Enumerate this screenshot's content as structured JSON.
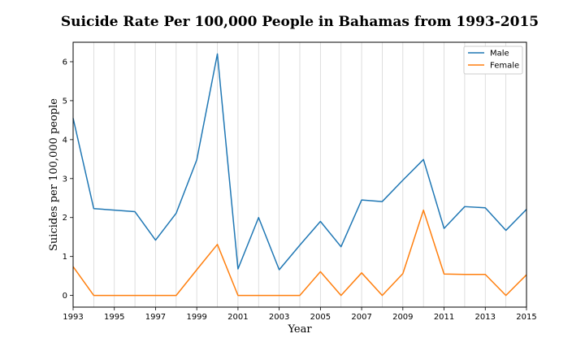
{
  "chart_data": {
    "type": "line",
    "title": "Suicide Rate Per 100,000 People in Bahamas from 1993-2015",
    "xlabel": "Year",
    "ylabel": "Suicides per 100,000 people",
    "x": [
      1993,
      1994,
      1995,
      1996,
      1997,
      1998,
      1999,
      2000,
      2001,
      2002,
      2003,
      2004,
      2005,
      2006,
      2007,
      2008,
      2009,
      2010,
      2011,
      2012,
      2013,
      2014,
      2015
    ],
    "xlim": [
      1993,
      2015
    ],
    "ylim": [
      -0.3,
      6.5
    ],
    "xticks": [
      1993,
      1995,
      1997,
      1999,
      2001,
      2003,
      2005,
      2007,
      2009,
      2011,
      2013,
      2015
    ],
    "yticks": [
      0,
      1,
      2,
      3,
      4,
      5,
      6
    ],
    "grid": "vertical",
    "legend_position": "top-right",
    "series": [
      {
        "name": "Male",
        "color": "#1f77b4",
        "values": [
          4.55,
          2.23,
          2.19,
          2.15,
          1.42,
          2.11,
          3.48,
          6.2,
          0.68,
          2.0,
          0.66,
          1.29,
          1.9,
          1.25,
          2.45,
          2.41,
          2.96,
          3.49,
          1.72,
          2.28,
          2.25,
          1.67,
          2.21
        ]
      },
      {
        "name": "Female",
        "color": "#ff7f0e",
        "values": [
          0.74,
          0.0,
          0.0,
          0.0,
          0.0,
          0.0,
          0.66,
          1.31,
          0.0,
          0.0,
          0.0,
          0.0,
          0.61,
          0.0,
          0.58,
          0.0,
          0.56,
          2.19,
          0.55,
          0.54,
          0.54,
          0.0,
          0.53
        ]
      }
    ]
  }
}
